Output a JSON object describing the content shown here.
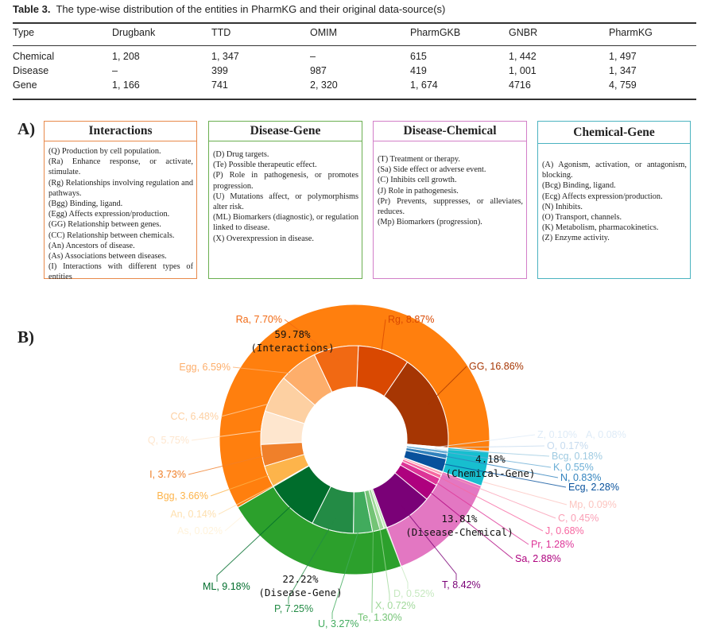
{
  "table": {
    "caption_label": "Table 3.",
    "caption_text": "The type-wise distribution of the entities in PharmKG and their original data-source(s)",
    "headers": [
      "Type",
      "Drugbank",
      "TTD",
      "OMIM",
      "PharmGKB",
      "GNBR",
      "PharmKG"
    ],
    "rows": [
      [
        "Chemical",
        "1, 208",
        "1, 347",
        "–",
        "615",
        "1, 442",
        "1, 497"
      ],
      [
        "Disease",
        "–",
        "399",
        "987",
        "419",
        "1, 001",
        "1, 347"
      ],
      [
        "Gene",
        "1, 166",
        "741",
        "2, 320",
        "1, 674",
        "4716",
        "4, 759"
      ]
    ]
  },
  "panel_a": {
    "label": "A)",
    "boxes": [
      {
        "title": "Interactions",
        "color": "#e8894a",
        "items": [
          "(Q) Production by cell population.",
          "(Ra) Enhance response, or activate, stimulate.",
          "(Rg) Relationships involving regulation and pathways.",
          "(Bgg) Binding, ligand.",
          "(Egg) Affects expression/production.",
          "(GG) Relationship between genes.",
          "(CC) Relationship between chemicals.",
          "(An) Ancestors of disease.",
          "(As) Associations between diseases.",
          "(I) Interactions with different types of entities"
        ]
      },
      {
        "title": "Disease-Gene",
        "color": "#6aaf50",
        "items": [
          "(D) Drug targets.",
          "(Te) Possible therapeutic effect.",
          "(P) Role in pathogenesis, or promotes progression.",
          "(U) Mutations affect, or polymorphisms alter risk.",
          "(ML) Biomarkers (diagnostic), or regulation linked to disease.",
          "(X) Overexpression in disease."
        ]
      },
      {
        "title": "Disease-Chemical",
        "color": "#d27fc8",
        "items": [
          "(T) Treatment or therapy.",
          "(Sa) Side effect or adverse event.",
          "(C) Inhibits cell growth.",
          "(J) Role in pathogenesis.",
          "(Pr) Prevents, suppresses, or alleviates, reduces.",
          "(Mp) Biomarkers (progression)."
        ]
      },
      {
        "title": "Chemical-Gene",
        "color": "#4bb3c0",
        "items": [
          "(A) Agonism, activation, or antagonism, blocking.",
          "(Bcg) Binding, ligand.",
          "(Ecg) Affects expression/production.",
          "(N) Inhibits.",
          "(O) Transport, channels.",
          "(K) Metabolism, pharmacokinetics.",
          "(Z) Enzyme activity."
        ]
      }
    ]
  },
  "panel_b": {
    "label": "B)"
  },
  "chart_data": {
    "type": "pie",
    "subtype": "nested donut",
    "direction": "counterclockwise",
    "groups": [
      {
        "name": "Interactions",
        "value_text": "59.78%",
        "value": 59.78,
        "color": "#ff7f0e",
        "items": [
          {
            "label": "GG",
            "value": 16.86,
            "text": "GG, 16.86%",
            "color": "#a63603"
          },
          {
            "label": "Rg",
            "value": 8.87,
            "text": "Rg, 8.87%",
            "color": "#d94801"
          },
          {
            "label": "Ra",
            "value": 7.7,
            "text": "Ra, 7.70%",
            "color": "#f16913"
          },
          {
            "label": "Egg",
            "value": 6.59,
            "text": "Egg, 6.59%",
            "color": "#fdae6b"
          },
          {
            "label": "CC",
            "value": 6.48,
            "text": "CC, 6.48%",
            "color": "#fdd0a2"
          },
          {
            "label": "Q",
            "value": 5.75,
            "text": "Q, 5.75%",
            "color": "#fee6ce"
          },
          {
            "label": "I",
            "value": 3.73,
            "text": "I, 3.73%",
            "color": "#f0802a"
          },
          {
            "label": "Bgg",
            "value": 3.66,
            "text": "Bgg, 3.66%",
            "color": "#fdb44b"
          },
          {
            "label": "An",
            "value": 0.14,
            "text": "An, 0.14%",
            "color": "#fee0b0"
          },
          {
            "label": "As",
            "value": 0.02,
            "text": "As, 0.02%",
            "color": "#fff3dc"
          }
        ]
      },
      {
        "name": "Disease-Gene",
        "value_text": "22.22%",
        "value": 22.22,
        "color": "#2ca02c",
        "items": [
          {
            "label": "ML",
            "value": 9.18,
            "text": "ML, 9.18%",
            "color": "#006d2c"
          },
          {
            "label": "P",
            "value": 7.25,
            "text": "P, 7.25%",
            "color": "#238b45"
          },
          {
            "label": "U",
            "value": 3.27,
            "text": "U, 3.27%",
            "color": "#41ab5d"
          },
          {
            "label": "Te",
            "value": 1.3,
            "text": "Te, 1.30%",
            "color": "#74c476"
          },
          {
            "label": "X",
            "value": 0.72,
            "text": "X, 0.72%",
            "color": "#a1d99b"
          },
          {
            "label": "D",
            "value": 0.52,
            "text": "D, 0.52%",
            "color": "#c7e9c0"
          }
        ]
      },
      {
        "name": "Disease-Chemical",
        "value_text": "13.81%",
        "value": 13.81,
        "color": "#e377c2",
        "items": [
          {
            "label": "T",
            "value": 8.42,
            "text": "T, 8.42%",
            "color": "#7a0177"
          },
          {
            "label": "Sa",
            "value": 2.88,
            "text": "Sa, 2.88%",
            "color": "#ae017e"
          },
          {
            "label": "Pr",
            "value": 1.28,
            "text": "Pr, 1.28%",
            "color": "#dd3497"
          },
          {
            "label": "J",
            "value": 0.68,
            "text": "J, 0.68%",
            "color": "#f768a1"
          },
          {
            "label": "C",
            "value": 0.45,
            "text": "C, 0.45%",
            "color": "#fa9fb5"
          },
          {
            "label": "Mp",
            "value": 0.09,
            "text": "Mp, 0.09%",
            "color": "#fcc5c0"
          }
        ]
      },
      {
        "name": "Chemical-Gene",
        "value_text": "4.18%",
        "value": 4.18,
        "color": "#17becf",
        "items": [
          {
            "label": "Ecg",
            "value": 2.28,
            "text": "Ecg, 2.28%",
            "color": "#08519c"
          },
          {
            "label": "N",
            "value": 0.83,
            "text": "N, 0.83%",
            "color": "#3182bd"
          },
          {
            "label": "K",
            "value": 0.55,
            "text": "K, 0.55%",
            "color": "#6baed6"
          },
          {
            "label": "Bcg",
            "value": 0.18,
            "text": "Bcg, 0.18%",
            "color": "#9ecae1"
          },
          {
            "label": "O",
            "value": 0.17,
            "text": "O, 0.17%",
            "color": "#c6dbef"
          },
          {
            "label": "Z",
            "value": 0.1,
            "text": "Z, 0.10%",
            "color": "#deebf7"
          },
          {
            "label": "A",
            "value": 0.08,
            "text": "A, 0.08%",
            "color": "#deebf7"
          }
        ]
      }
    ]
  }
}
